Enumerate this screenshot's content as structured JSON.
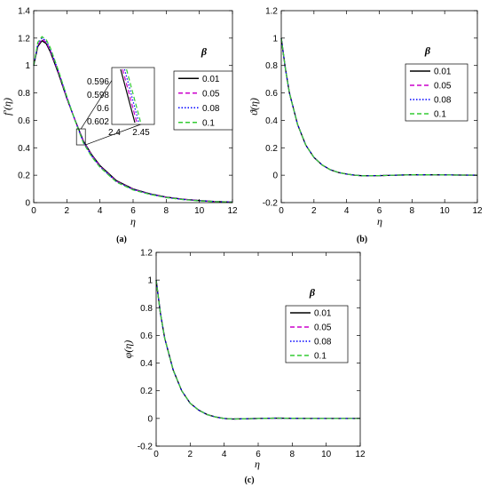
{
  "chart_data": [
    {
      "type": "line",
      "panel_label": "(a)",
      "xlabel": "η",
      "ylabel": "f′(η)",
      "xlim": [
        0,
        12
      ],
      "ylim": [
        0,
        1.4
      ],
      "xticks": [
        "0",
        "2",
        "4",
        "6",
        "8",
        "10",
        "12"
      ],
      "yticks": [
        "0",
        "0.2",
        "0.4",
        "0.6",
        "0.8",
        "1",
        "1.2",
        "1.4"
      ],
      "legend_title": "β",
      "legend_position": "top-right",
      "grid": false,
      "series": [
        {
          "name": "0.01",
          "color": "#000000",
          "dash": "solid",
          "x": [
            0,
            0.25,
            0.5,
            0.75,
            1,
            1.5,
            2,
            2.5,
            3,
            3.5,
            4,
            5,
            6,
            7,
            8,
            9,
            10,
            11,
            12
          ],
          "y": [
            1.0,
            1.14,
            1.18,
            1.16,
            1.1,
            0.94,
            0.76,
            0.6,
            0.45,
            0.35,
            0.27,
            0.16,
            0.1,
            0.065,
            0.04,
            0.025,
            0.015,
            0.008,
            0.004
          ]
        },
        {
          "name": "0.05",
          "color": "#cc00cc",
          "dash": "dashed",
          "x": [
            0,
            0.25,
            0.5,
            0.75,
            1,
            1.5,
            2,
            2.5,
            3,
            3.5,
            4,
            5,
            6,
            7,
            8,
            9,
            10,
            11,
            12
          ],
          "y": [
            1.0,
            1.15,
            1.19,
            1.17,
            1.11,
            0.95,
            0.765,
            0.598,
            0.445,
            0.345,
            0.265,
            0.155,
            0.097,
            0.063,
            0.039,
            0.024,
            0.014,
            0.008,
            0.004
          ]
        },
        {
          "name": "0.08",
          "color": "#0000ff",
          "dash": "dotted",
          "x": [
            0,
            0.25,
            0.5,
            0.75,
            1,
            1.5,
            2,
            2.5,
            3,
            3.5,
            4,
            5,
            6,
            7,
            8,
            9,
            10,
            11,
            12
          ],
          "y": [
            1.0,
            1.16,
            1.2,
            1.18,
            1.12,
            0.955,
            0.77,
            0.597,
            0.44,
            0.34,
            0.262,
            0.152,
            0.095,
            0.062,
            0.038,
            0.023,
            0.014,
            0.007,
            0.004
          ]
        },
        {
          "name": "0.1",
          "color": "#33cc33",
          "dash": "dashed",
          "x": [
            0,
            0.25,
            0.5,
            0.75,
            1,
            1.5,
            2,
            2.5,
            3,
            3.5,
            4,
            5,
            6,
            7,
            8,
            9,
            10,
            11,
            12
          ],
          "y": [
            1.0,
            1.17,
            1.21,
            1.19,
            1.13,
            0.96,
            0.775,
            0.596,
            0.435,
            0.335,
            0.258,
            0.15,
            0.093,
            0.06,
            0.037,
            0.022,
            0.013,
            0.007,
            0.003
          ]
        }
      ],
      "inset": {
        "xticks": [
          "2.4",
          "2.45"
        ],
        "yticks": [
          "0.596",
          "0.598",
          "0.6",
          "0.602"
        ]
      }
    },
    {
      "type": "line",
      "panel_label": "(b)",
      "xlabel": "η",
      "ylabel": "ϑ(η)",
      "xlim": [
        0,
        12
      ],
      "ylim": [
        -0.2,
        1.2
      ],
      "xticks": [
        "0",
        "2",
        "4",
        "6",
        "8",
        "10",
        "12"
      ],
      "yticks": [
        "-0.2",
        "0",
        "0.2",
        "0.4",
        "0.6",
        "0.8",
        "1",
        "1.2"
      ],
      "legend_title": "β",
      "legend_position": "top-right",
      "grid": false,
      "series": [
        {
          "name": "0.01",
          "color": "#000000",
          "dash": "solid",
          "x": [
            0,
            0.25,
            0.5,
            1,
            1.5,
            2,
            2.5,
            3,
            3.5,
            4,
            4.5,
            5,
            6,
            7,
            8,
            9,
            10,
            11,
            12
          ],
          "y": [
            1.0,
            0.78,
            0.6,
            0.37,
            0.22,
            0.13,
            0.075,
            0.04,
            0.02,
            0.008,
            0.0,
            -0.004,
            -0.003,
            0.0,
            0.003,
            0.003,
            0.002,
            0.001,
            0.0
          ]
        },
        {
          "name": "0.05",
          "color": "#cc00cc",
          "dash": "dashed",
          "x": [
            0,
            0.25,
            0.5,
            1,
            1.5,
            2,
            2.5,
            3,
            3.5,
            4,
            4.5,
            5,
            6,
            7,
            8,
            9,
            10,
            11,
            12
          ],
          "y": [
            1.0,
            0.78,
            0.6,
            0.37,
            0.22,
            0.13,
            0.075,
            0.04,
            0.02,
            0.008,
            0.0,
            -0.004,
            -0.003,
            0.0,
            0.003,
            0.003,
            0.002,
            0.001,
            0.0
          ]
        },
        {
          "name": "0.08",
          "color": "#0000ff",
          "dash": "dotted",
          "x": [
            0,
            0.25,
            0.5,
            1,
            1.5,
            2,
            2.5,
            3,
            3.5,
            4,
            4.5,
            5,
            6,
            7,
            8,
            9,
            10,
            11,
            12
          ],
          "y": [
            1.0,
            0.78,
            0.6,
            0.37,
            0.22,
            0.13,
            0.075,
            0.04,
            0.02,
            0.008,
            0.0,
            -0.004,
            -0.003,
            0.0,
            0.003,
            0.003,
            0.002,
            0.001,
            0.0
          ]
        },
        {
          "name": "0.1",
          "color": "#33cc33",
          "dash": "dashed",
          "x": [
            0,
            0.25,
            0.5,
            1,
            1.5,
            2,
            2.5,
            3,
            3.5,
            4,
            4.5,
            5,
            6,
            7,
            8,
            9,
            10,
            11,
            12
          ],
          "y": [
            1.0,
            0.78,
            0.6,
            0.37,
            0.22,
            0.13,
            0.075,
            0.04,
            0.02,
            0.008,
            0.0,
            -0.004,
            -0.003,
            0.0,
            0.003,
            0.003,
            0.002,
            0.001,
            0.0
          ]
        }
      ]
    },
    {
      "type": "line",
      "panel_label": "(c)",
      "xlabel": "η",
      "ylabel": "φ(η)",
      "xlim": [
        0,
        12
      ],
      "ylim": [
        -0.2,
        1.2
      ],
      "xticks": [
        "0",
        "2",
        "4",
        "6",
        "8",
        "10",
        "12"
      ],
      "yticks": [
        "-0.2",
        "0",
        "0.2",
        "0.4",
        "0.6",
        "0.8",
        "1",
        "1.2"
      ],
      "legend_title": "β",
      "legend_position": "top-right",
      "grid": false,
      "series": [
        {
          "name": "0.01",
          "color": "#000000",
          "dash": "solid",
          "x": [
            0,
            0.25,
            0.5,
            1,
            1.5,
            2,
            2.5,
            3,
            3.5,
            4,
            4.5,
            5,
            6,
            7,
            8,
            9,
            10,
            11,
            12
          ],
          "y": [
            1.0,
            0.76,
            0.58,
            0.35,
            0.2,
            0.11,
            0.06,
            0.028,
            0.01,
            0.0,
            -0.004,
            -0.003,
            0.0,
            0.002,
            0.001,
            0.0,
            0.0,
            0.0,
            0.0
          ]
        },
        {
          "name": "0.05",
          "color": "#cc00cc",
          "dash": "dashed",
          "x": [
            0,
            0.25,
            0.5,
            1,
            1.5,
            2,
            2.5,
            3,
            3.5,
            4,
            4.5,
            5,
            6,
            7,
            8,
            9,
            10,
            11,
            12
          ],
          "y": [
            1.0,
            0.76,
            0.58,
            0.35,
            0.2,
            0.11,
            0.06,
            0.028,
            0.01,
            0.0,
            -0.004,
            -0.003,
            0.0,
            0.002,
            0.001,
            0.0,
            0.0,
            0.0,
            0.0
          ]
        },
        {
          "name": "0.08",
          "color": "#0000ff",
          "dash": "dotted",
          "x": [
            0,
            0.25,
            0.5,
            1,
            1.5,
            2,
            2.5,
            3,
            3.5,
            4,
            4.5,
            5,
            6,
            7,
            8,
            9,
            10,
            11,
            12
          ],
          "y": [
            1.0,
            0.76,
            0.58,
            0.35,
            0.2,
            0.11,
            0.06,
            0.028,
            0.01,
            0.0,
            -0.004,
            -0.003,
            0.0,
            0.002,
            0.001,
            0.0,
            0.0,
            0.0,
            0.0
          ]
        },
        {
          "name": "0.1",
          "color": "#33cc33",
          "dash": "dashed",
          "x": [
            0,
            0.25,
            0.5,
            1,
            1.5,
            2,
            2.5,
            3,
            3.5,
            4,
            4.5,
            5,
            6,
            7,
            8,
            9,
            10,
            11,
            12
          ],
          "y": [
            1.0,
            0.76,
            0.58,
            0.35,
            0.2,
            0.11,
            0.06,
            0.028,
            0.01,
            0.0,
            -0.004,
            -0.003,
            0.0,
            0.002,
            0.001,
            0.0,
            0.0,
            0.0,
            0.0
          ]
        }
      ]
    }
  ]
}
